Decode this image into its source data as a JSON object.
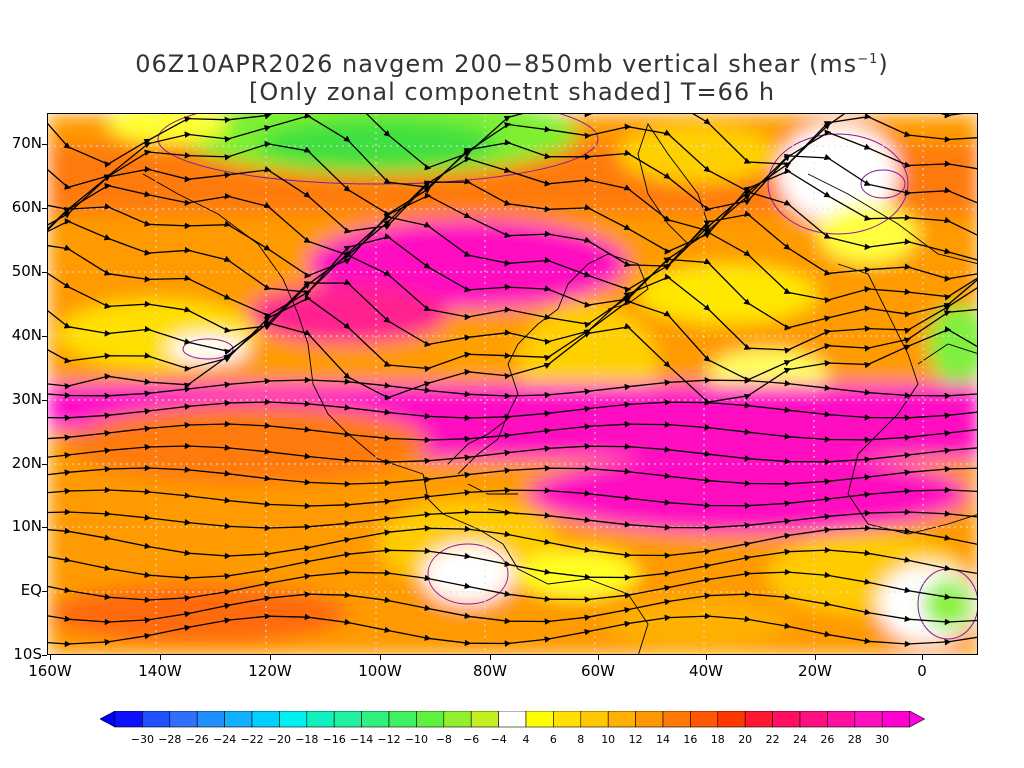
{
  "title": {
    "line1_main": "06Z10APR2026 navgem 200−850mb vertical shear (ms",
    "line1_sup": "−1",
    "line1_end": ")",
    "line2": "[Only zonal componetnt shaded] T=66 h"
  },
  "axes": {
    "lat_labels": [
      "70N",
      "60N",
      "50N",
      "40N",
      "30N",
      "20N",
      "10N",
      "EQ",
      "10S"
    ],
    "lon_labels": [
      "160W",
      "140W",
      "120W",
      "100W",
      "80W",
      "60W",
      "40W",
      "20W",
      "0"
    ]
  },
  "colorbar": {
    "labels": [
      "−30",
      "−28",
      "−26",
      "−24",
      "−22",
      "−20",
      "−18",
      "−16",
      "−14",
      "−12",
      "−10",
      "−8",
      "−6",
      "−4",
      "4",
      "6",
      "8",
      "10",
      "12",
      "14",
      "16",
      "18",
      "20",
      "22",
      "24",
      "26",
      "28",
      "30"
    ],
    "colors": [
      "#1010ff",
      "#2050ff",
      "#3070ff",
      "#2090ff",
      "#10b0ff",
      "#00d0ff",
      "#00f0f0",
      "#10f0c0",
      "#20f0a0",
      "#30f080",
      "#40f060",
      "#60f040",
      "#90f030",
      "#c0f020",
      "#ffffff",
      "#ffff00",
      "#ffe000",
      "#ffc800",
      "#ffb000",
      "#ff9800",
      "#ff7800",
      "#ff5800",
      "#ff3800",
      "#ff1830",
      "#ff1060",
      "#ff1080",
      "#ff10a0",
      "#ff10c0",
      "#ff00d0"
    ],
    "under_color": "#0000ff",
    "over_color": "#ff00e0"
  }
}
